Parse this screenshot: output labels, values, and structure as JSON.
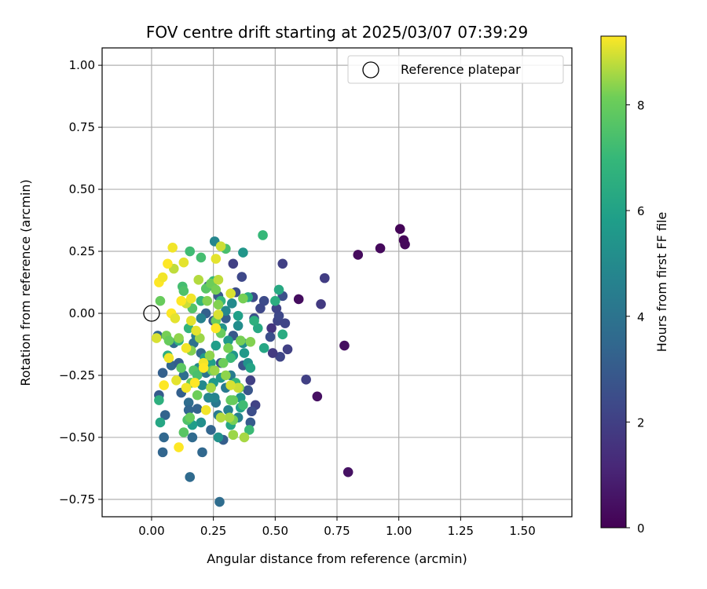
{
  "chart_data": {
    "type": "scatter",
    "title": "FOV centre drift starting at 2025/03/07 07:39:29",
    "xlabel": "Angular distance from reference (arcmin)",
    "ylabel": "Rotation from reference (arcmin)",
    "xlim": [
      -0.2,
      1.7
    ],
    "ylim": [
      -0.82,
      1.07
    ],
    "xticks": [
      0.0,
      0.25,
      0.5,
      0.75,
      1.0,
      1.25,
      1.5
    ],
    "xtick_labels": [
      "0.00",
      "0.25",
      "0.50",
      "0.75",
      "1.00",
      "1.25",
      "1.50"
    ],
    "yticks": [
      -0.75,
      -0.5,
      -0.25,
      0.0,
      0.25,
      0.5,
      0.75,
      1.0
    ],
    "ytick_labels": [
      "−0.75",
      "−0.50",
      "−0.25",
      "0.00",
      "0.25",
      "0.50",
      "0.75",
      "1.00"
    ],
    "grid": true,
    "legend": {
      "label": "Reference platepar",
      "placement": "top-right"
    },
    "reference_point": {
      "x": 0.0,
      "y": 0.0
    },
    "colorbar": {
      "label": "Hours from first FF file",
      "range": [
        0,
        9.3
      ],
      "ticks": [
        0,
        2,
        4,
        6,
        8
      ],
      "tick_labels": [
        "0",
        "2",
        "4",
        "6",
        "8"
      ],
      "colormap": "viridis"
    },
    "points": [
      {
        "x": 1.005,
        "y": 0.34,
        "h": 0.1
      },
      {
        "x": 1.02,
        "y": 0.295,
        "h": 0.15
      },
      {
        "x": 1.025,
        "y": 0.278,
        "h": 0.2
      },
      {
        "x": 0.925,
        "y": 0.262,
        "h": 0.25
      },
      {
        "x": 0.835,
        "y": 0.236,
        "h": 0.3
      },
      {
        "x": 0.595,
        "y": 0.057,
        "h": 0.35
      },
      {
        "x": 0.78,
        "y": -0.13,
        "h": 0.4
      },
      {
        "x": 0.67,
        "y": -0.335,
        "h": 0.45
      },
      {
        "x": 0.795,
        "y": -0.64,
        "h": 0.5
      },
      {
        "x": 0.53,
        "y": 0.2,
        "h": 2.0
      },
      {
        "x": 0.7,
        "y": 0.142,
        "h": 1.9
      },
      {
        "x": 0.685,
        "y": 0.037,
        "h": 1.8
      },
      {
        "x": 0.625,
        "y": -0.267,
        "h": 2.0
      },
      {
        "x": 0.485,
        "y": -0.06,
        "h": 1.6
      },
      {
        "x": 0.51,
        "y": -0.03,
        "h": 2.1
      },
      {
        "x": 0.54,
        "y": -0.04,
        "h": 2.2
      },
      {
        "x": 0.55,
        "y": -0.145,
        "h": 2.0
      },
      {
        "x": 0.52,
        "y": -0.175,
        "h": 2.2
      },
      {
        "x": 0.49,
        "y": -0.16,
        "h": 1.8
      },
      {
        "x": 0.455,
        "y": 0.05,
        "h": 2.4
      },
      {
        "x": 0.515,
        "y": -0.01,
        "h": 2.3
      },
      {
        "x": 0.48,
        "y": -0.095,
        "h": 2.5
      },
      {
        "x": 0.53,
        "y": 0.07,
        "h": 2.6
      },
      {
        "x": 0.505,
        "y": 0.02,
        "h": 2.2
      },
      {
        "x": 0.33,
        "y": 0.2,
        "h": 2.0
      },
      {
        "x": 0.365,
        "y": 0.147,
        "h": 2.3
      },
      {
        "x": 0.34,
        "y": 0.085,
        "h": 2.5
      },
      {
        "x": 0.41,
        "y": 0.065,
        "h": 2.4
      },
      {
        "x": 0.44,
        "y": 0.02,
        "h": 2.3
      },
      {
        "x": 0.415,
        "y": -0.02,
        "h": 2.6
      },
      {
        "x": 0.4,
        "y": -0.27,
        "h": 2.0
      },
      {
        "x": 0.42,
        "y": -0.37,
        "h": 2.1
      },
      {
        "x": 0.405,
        "y": -0.395,
        "h": 2.5
      },
      {
        "x": 0.4,
        "y": -0.44,
        "h": 3.0
      },
      {
        "x": 0.39,
        "y": -0.31,
        "h": 2.8
      },
      {
        "x": 0.37,
        "y": -0.21,
        "h": 2.7
      },
      {
        "x": 0.33,
        "y": -0.09,
        "h": 2.9
      },
      {
        "x": 0.3,
        "y": -0.02,
        "h": 3.1
      },
      {
        "x": 0.25,
        "y": -0.03,
        "h": 2.9
      },
      {
        "x": 0.27,
        "y": 0.07,
        "h": 3.0
      },
      {
        "x": 0.23,
        "y": 0.11,
        "h": 2.9
      },
      {
        "x": 0.22,
        "y": 0.0,
        "h": 3.2
      },
      {
        "x": 0.28,
        "y": -0.2,
        "h": 2.8
      },
      {
        "x": 0.29,
        "y": -0.51,
        "h": 3.1
      },
      {
        "x": 0.24,
        "y": -0.47,
        "h": 3.4
      },
      {
        "x": 0.205,
        "y": -0.56,
        "h": 3.5
      },
      {
        "x": 0.155,
        "y": -0.66,
        "h": 3.6
      },
      {
        "x": 0.275,
        "y": -0.76,
        "h": 3.7
      },
      {
        "x": 0.045,
        "y": -0.56,
        "h": 3.4
      },
      {
        "x": 0.05,
        "y": -0.5,
        "h": 3.5
      },
      {
        "x": 0.055,
        "y": -0.41,
        "h": 3.3
      },
      {
        "x": 0.165,
        "y": -0.5,
        "h": 3.6
      },
      {
        "x": 0.03,
        "y": -0.33,
        "h": 3.0
      },
      {
        "x": 0.045,
        "y": -0.24,
        "h": 3.2
      },
      {
        "x": 0.08,
        "y": -0.21,
        "h": 3.4
      },
      {
        "x": 0.09,
        "y": -0.12,
        "h": 3.6
      },
      {
        "x": 0.025,
        "y": -0.09,
        "h": 3.5
      },
      {
        "x": 0.15,
        "y": -0.36,
        "h": 3.7
      },
      {
        "x": 0.15,
        "y": -0.39,
        "h": 3.4
      },
      {
        "x": 0.185,
        "y": -0.385,
        "h": 3.3
      },
      {
        "x": 0.12,
        "y": -0.32,
        "h": 3.2
      },
      {
        "x": 0.11,
        "y": -0.2,
        "h": 3.1
      },
      {
        "x": 0.13,
        "y": -0.25,
        "h": 3.8
      },
      {
        "x": 0.17,
        "y": -0.12,
        "h": 3.9
      },
      {
        "x": 0.2,
        "y": -0.16,
        "h": 3.5
      },
      {
        "x": 0.22,
        "y": -0.24,
        "h": 4.0
      },
      {
        "x": 0.24,
        "y": -0.3,
        "h": 4.1
      },
      {
        "x": 0.26,
        "y": -0.36,
        "h": 4.2
      },
      {
        "x": 0.3,
        "y": -0.3,
        "h": 4.3
      },
      {
        "x": 0.32,
        "y": -0.25,
        "h": 4.4
      },
      {
        "x": 0.35,
        "y": -0.42,
        "h": 4.5
      },
      {
        "x": 0.31,
        "y": -0.39,
        "h": 4.6
      },
      {
        "x": 0.27,
        "y": -0.41,
        "h": 4.3
      },
      {
        "x": 0.255,
        "y": -0.34,
        "h": 4.7
      },
      {
        "x": 0.23,
        "y": -0.34,
        "h": 4.8
      },
      {
        "x": 0.205,
        "y": -0.29,
        "h": 4.9
      },
      {
        "x": 0.19,
        "y": -0.22,
        "h": 5.0
      },
      {
        "x": 0.18,
        "y": -0.09,
        "h": 4.4
      },
      {
        "x": 0.2,
        "y": -0.02,
        "h": 4.6
      },
      {
        "x": 0.255,
        "y": 0.29,
        "h": 4.8
      },
      {
        "x": 0.3,
        "y": 0.01,
        "h": 4.9
      },
      {
        "x": 0.325,
        "y": 0.04,
        "h": 5.0
      },
      {
        "x": 0.35,
        "y": -0.05,
        "h": 5.1
      },
      {
        "x": 0.37,
        "y": -0.12,
        "h": 5.2
      },
      {
        "x": 0.39,
        "y": -0.2,
        "h": 5.3
      },
      {
        "x": 0.36,
        "y": -0.34,
        "h": 5.4
      },
      {
        "x": 0.33,
        "y": -0.17,
        "h": 5.5
      },
      {
        "x": 0.31,
        "y": -0.11,
        "h": 5.6
      },
      {
        "x": 0.285,
        "y": -0.06,
        "h": 5.4
      },
      {
        "x": 0.26,
        "y": -0.13,
        "h": 5.8
      },
      {
        "x": 0.24,
        "y": -0.2,
        "h": 5.9
      },
      {
        "x": 0.215,
        "y": -0.18,
        "h": 5.7
      },
      {
        "x": 0.28,
        "y": -0.26,
        "h": 5.5
      },
      {
        "x": 0.25,
        "y": -0.28,
        "h": 5.6
      },
      {
        "x": 0.27,
        "y": -0.5,
        "h": 5.3
      },
      {
        "x": 0.2,
        "y": -0.44,
        "h": 5.2
      },
      {
        "x": 0.165,
        "y": -0.45,
        "h": 5.8
      },
      {
        "x": 0.35,
        "y": -0.01,
        "h": 5.9
      },
      {
        "x": 0.37,
        "y": 0.245,
        "h": 5.5
      },
      {
        "x": 0.375,
        "y": -0.16,
        "h": 5.6
      },
      {
        "x": 0.4,
        "y": -0.22,
        "h": 6.1
      },
      {
        "x": 0.36,
        "y": -0.38,
        "h": 6.0
      },
      {
        "x": 0.32,
        "y": -0.45,
        "h": 6.2
      },
      {
        "x": 0.455,
        "y": -0.14,
        "h": 6.2
      },
      {
        "x": 0.515,
        "y": 0.095,
        "h": 6.3
      },
      {
        "x": 0.53,
        "y": -0.085,
        "h": 6.4
      },
      {
        "x": 0.5,
        "y": 0.05,
        "h": 6.5
      },
      {
        "x": 0.43,
        "y": -0.06,
        "h": 6.3
      },
      {
        "x": 0.415,
        "y": -0.03,
        "h": 6.6
      },
      {
        "x": 0.39,
        "y": 0.065,
        "h": 6.4
      },
      {
        "x": 0.035,
        "y": -0.44,
        "h": 6.2
      },
      {
        "x": 0.03,
        "y": -0.35,
        "h": 6.6
      },
      {
        "x": 0.065,
        "y": -0.17,
        "h": 6.5
      },
      {
        "x": 0.11,
        "y": -0.11,
        "h": 6.7
      },
      {
        "x": 0.15,
        "y": -0.06,
        "h": 6.8
      },
      {
        "x": 0.2,
        "y": 0.05,
        "h": 6.9
      },
      {
        "x": 0.25,
        "y": 0.13,
        "h": 7.0
      },
      {
        "x": 0.28,
        "y": 0.05,
        "h": 6.9
      },
      {
        "x": 0.32,
        "y": -0.18,
        "h": 7.1
      },
      {
        "x": 0.34,
        "y": -0.28,
        "h": 7.0
      },
      {
        "x": 0.37,
        "y": -0.37,
        "h": 7.2
      },
      {
        "x": 0.395,
        "y": -0.47,
        "h": 7.1
      },
      {
        "x": 0.45,
        "y": 0.315,
        "h": 7.0
      },
      {
        "x": 0.155,
        "y": 0.25,
        "h": 7.2
      },
      {
        "x": 0.2,
        "y": 0.225,
        "h": 7.3
      },
      {
        "x": 0.3,
        "y": 0.26,
        "h": 7.4
      },
      {
        "x": 0.125,
        "y": 0.108,
        "h": 7.3
      },
      {
        "x": 0.13,
        "y": 0.09,
        "h": 7.5
      },
      {
        "x": 0.165,
        "y": 0.02,
        "h": 7.6
      },
      {
        "x": 0.22,
        "y": 0.1,
        "h": 7.7
      },
      {
        "x": 0.12,
        "y": -0.22,
        "h": 7.8
      },
      {
        "x": 0.16,
        "y": -0.28,
        "h": 7.9
      },
      {
        "x": 0.17,
        "y": -0.23,
        "h": 7.6
      },
      {
        "x": 0.185,
        "y": -0.25,
        "h": 7.4
      },
      {
        "x": 0.145,
        "y": -0.43,
        "h": 7.5
      },
      {
        "x": 0.13,
        "y": -0.48,
        "h": 7.7
      },
      {
        "x": 0.155,
        "y": -0.42,
        "h": 8.0
      },
      {
        "x": 0.185,
        "y": -0.33,
        "h": 8.1
      },
      {
        "x": 0.245,
        "y": -0.23,
        "h": 8.0
      },
      {
        "x": 0.29,
        "y": -0.2,
        "h": 8.1
      },
      {
        "x": 0.31,
        "y": -0.14,
        "h": 8.2
      },
      {
        "x": 0.28,
        "y": -0.08,
        "h": 8.0
      },
      {
        "x": 0.26,
        "y": -0.03,
        "h": 8.1
      },
      {
        "x": 0.32,
        "y": -0.35,
        "h": 7.9
      },
      {
        "x": 0.33,
        "y": -0.43,
        "h": 8.2
      },
      {
        "x": 0.33,
        "y": -0.35,
        "h": 8.0
      },
      {
        "x": 0.355,
        "y": -0.3,
        "h": 8.1
      },
      {
        "x": 0.36,
        "y": -0.11,
        "h": 8.2
      },
      {
        "x": 0.24,
        "y": 0.12,
        "h": 8.1
      },
      {
        "x": 0.26,
        "y": 0.095,
        "h": 8.2
      },
      {
        "x": 0.27,
        "y": 0.035,
        "h": 8.3
      },
      {
        "x": 0.37,
        "y": 0.06,
        "h": 8.2
      },
      {
        "x": 0.4,
        "y": -0.115,
        "h": 8.3
      },
      {
        "x": 0.225,
        "y": 0.05,
        "h": 8.3
      },
      {
        "x": 0.035,
        "y": 0.05,
        "h": 8.0
      },
      {
        "x": 0.06,
        "y": -0.09,
        "h": 8.2
      },
      {
        "x": 0.07,
        "y": -0.11,
        "h": 8.0
      },
      {
        "x": 0.11,
        "y": -0.1,
        "h": 8.4
      },
      {
        "x": 0.16,
        "y": -0.15,
        "h": 8.3
      },
      {
        "x": 0.195,
        "y": -0.1,
        "h": 8.5
      },
      {
        "x": 0.235,
        "y": -0.17,
        "h": 8.4
      },
      {
        "x": 0.255,
        "y": -0.23,
        "h": 8.5
      },
      {
        "x": 0.3,
        "y": -0.25,
        "h": 8.4
      },
      {
        "x": 0.315,
        "y": -0.42,
        "h": 8.6
      },
      {
        "x": 0.33,
        "y": -0.49,
        "h": 8.5
      },
      {
        "x": 0.375,
        "y": -0.5,
        "h": 8.6
      },
      {
        "x": 0.28,
        "y": -0.42,
        "h": 8.7
      },
      {
        "x": 0.24,
        "y": -0.3,
        "h": 8.6
      },
      {
        "x": 0.19,
        "y": 0.135,
        "h": 8.7
      },
      {
        "x": 0.27,
        "y": 0.135,
        "h": 8.8
      },
      {
        "x": 0.09,
        "y": 0.18,
        "h": 8.8
      },
      {
        "x": 0.28,
        "y": 0.27,
        "h": 8.9
      },
      {
        "x": 0.14,
        "y": 0.04,
        "h": 8.9
      },
      {
        "x": 0.32,
        "y": 0.08,
        "h": 9.0
      },
      {
        "x": 0.35,
        "y": -0.3,
        "h": 8.9
      },
      {
        "x": 0.32,
        "y": -0.29,
        "h": 9.0
      },
      {
        "x": 0.27,
        "y": -0.005,
        "h": 9.0
      },
      {
        "x": 0.18,
        "y": -0.07,
        "h": 9.1
      },
      {
        "x": 0.16,
        "y": -0.03,
        "h": 9.1
      },
      {
        "x": 0.14,
        "y": -0.14,
        "h": 9.2
      },
      {
        "x": 0.21,
        "y": -0.2,
        "h": 9.2
      },
      {
        "x": 0.21,
        "y": -0.22,
        "h": 9.3
      },
      {
        "x": 0.26,
        "y": -0.06,
        "h": 9.3
      },
      {
        "x": 0.07,
        "y": -0.18,
        "h": 9.2
      },
      {
        "x": 0.05,
        "y": -0.29,
        "h": 9.3
      },
      {
        "x": 0.1,
        "y": -0.27,
        "h": 9.1
      },
      {
        "x": 0.14,
        "y": -0.3,
        "h": 9.2
      },
      {
        "x": 0.175,
        "y": -0.28,
        "h": 9.3
      },
      {
        "x": 0.22,
        "y": -0.39,
        "h": 9.2
      },
      {
        "x": 0.11,
        "y": -0.54,
        "h": 9.3
      },
      {
        "x": 0.085,
        "y": 0.265,
        "h": 9.2
      },
      {
        "x": 0.065,
        "y": 0.2,
        "h": 9.3
      },
      {
        "x": 0.13,
        "y": 0.205,
        "h": 9.1
      },
      {
        "x": 0.03,
        "y": 0.125,
        "h": 9.3
      },
      {
        "x": 0.045,
        "y": 0.145,
        "h": 9.2
      },
      {
        "x": 0.08,
        "y": 0.0,
        "h": 9.3
      },
      {
        "x": 0.095,
        "y": -0.02,
        "h": 9.1
      },
      {
        "x": 0.16,
        "y": 0.06,
        "h": 9.2
      },
      {
        "x": 0.26,
        "y": 0.22,
        "h": 9.1
      },
      {
        "x": 0.12,
        "y": 0.05,
        "h": 9.3
      },
      {
        "x": 0.02,
        "y": -0.1,
        "h": 9.0
      }
    ]
  }
}
